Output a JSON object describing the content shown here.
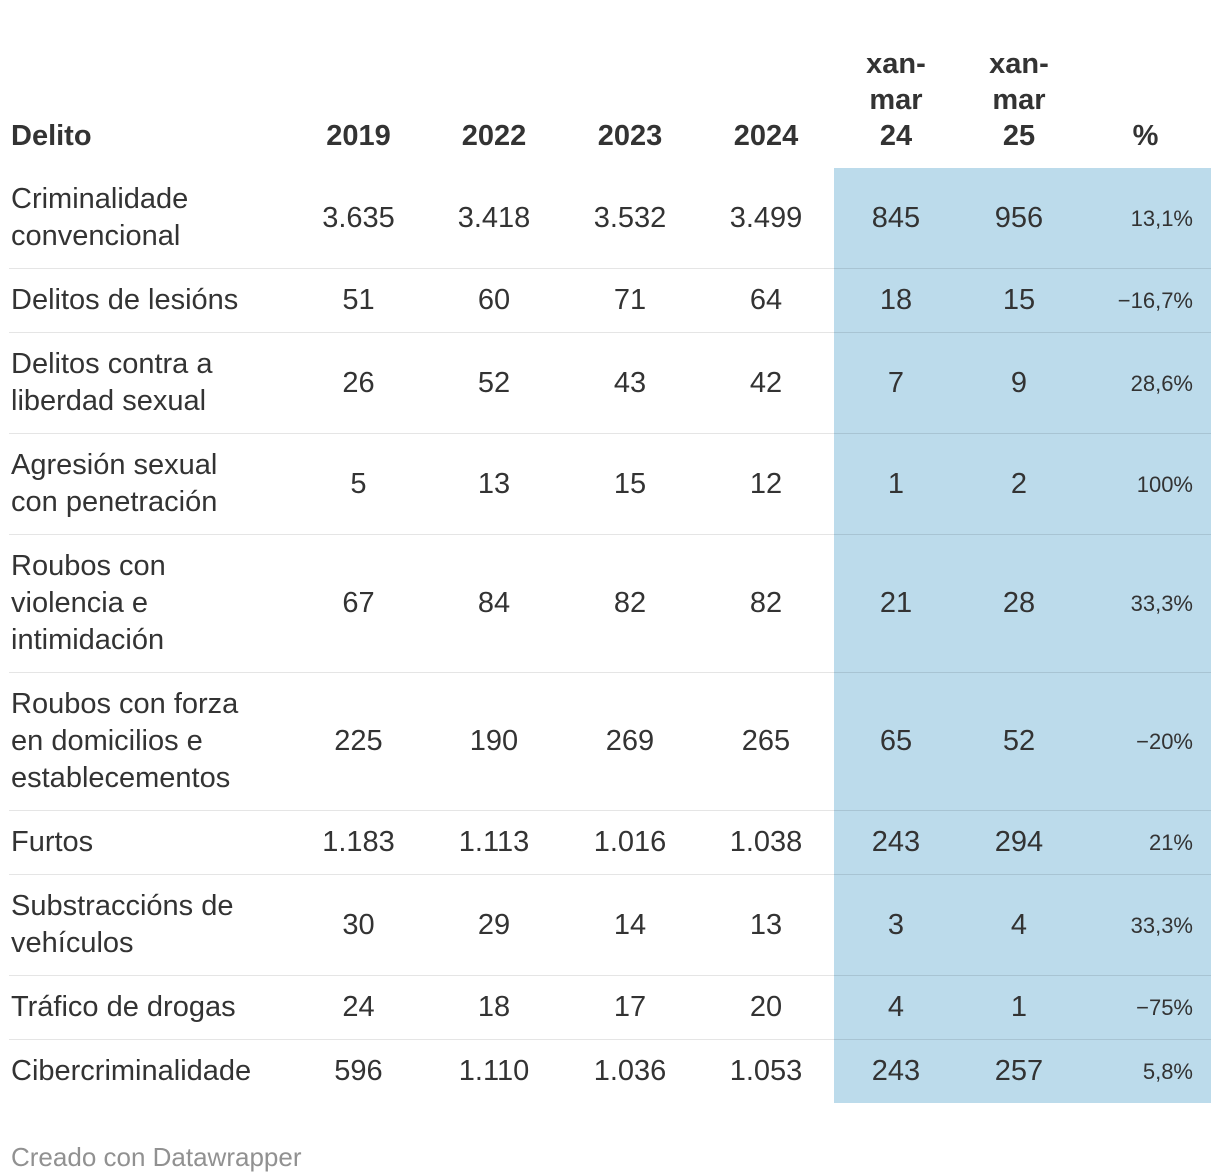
{
  "chart_data": {
    "type": "table",
    "columns": [
      "Delito",
      "2019",
      "2022",
      "2023",
      "2024",
      "xan-mar 24",
      "xan-mar 25",
      "%"
    ],
    "rows": [
      [
        "Criminalidade convencional",
        "3.635",
        "3.418",
        "3.532",
        "3.499",
        "845",
        "956",
        "13,1%"
      ],
      [
        "Delitos de lesións",
        "51",
        "60",
        "71",
        "64",
        "18",
        "15",
        "−16,7%"
      ],
      [
        "Delitos contra a liberdad sexual",
        "26",
        "52",
        "43",
        "42",
        "7",
        "9",
        "28,6%"
      ],
      [
        "Agresión sexual con penetración",
        "5",
        "13",
        "15",
        "12",
        "1",
        "2",
        "100%"
      ],
      [
        "Roubos con violencia e intimidación",
        "67",
        "84",
        "82",
        "82",
        "21",
        "28",
        "33,3%"
      ],
      [
        "Roubos con forza en domicilios e establecementos",
        "225",
        "190",
        "269",
        "265",
        "65",
        "52",
        "−20%"
      ],
      [
        "Furtos",
        "1.183",
        "1.113",
        "1.016",
        "1.038",
        "243",
        "294",
        "21%"
      ],
      [
        "Substraccións de vehículos",
        "30",
        "29",
        "14",
        "13",
        "3",
        "4",
        "33,3%"
      ],
      [
        "Tráfico de drogas",
        "24",
        "18",
        "17",
        "20",
        "4",
        "1",
        "−75%"
      ],
      [
        "Cibercriminalidade",
        "596",
        "1.110",
        "1.036",
        "1.053",
        "243",
        "257",
        "5,8%"
      ]
    ],
    "highlighted_columns": [
      "xan-mar 24",
      "xan-mar 25",
      "%"
    ],
    "legend_position": "none",
    "grid": "row-separators-only"
  },
  "footer": {
    "attribution": "Creado con Datawrapper"
  },
  "colors": {
    "highlight_bg": "#bcdbeb",
    "text": "#333333",
    "row_separator": "#e5e5e5",
    "footer_text": "#919191",
    "background": "#ffffff"
  }
}
